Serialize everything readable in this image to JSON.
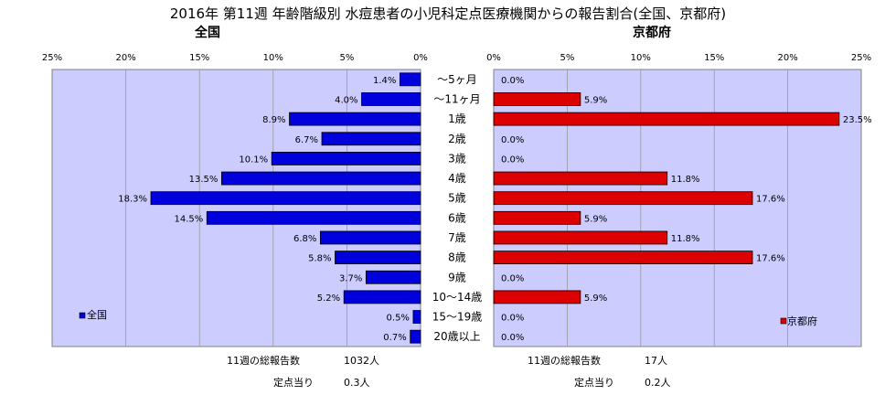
{
  "title": "2016年 第11週 年齢階級別 水痘患者の小児科定点医療機関からの報告割合(全国、京都府)",
  "colors": {
    "national": "#0000dd",
    "kyoto": "#dd0000",
    "plot_bg": "#ccccff"
  },
  "chart_data": [
    {
      "type": "bar",
      "orientation": "horizontal",
      "direction": "reversed",
      "title": "全国",
      "categories": [
        "〜5ヶ月",
        "〜11ヶ月",
        "1歳",
        "2歳",
        "3歳",
        "4歳",
        "5歳",
        "6歳",
        "7歳",
        "8歳",
        "9歳",
        "10〜14歳",
        "15〜19歳",
        "20歳以上"
      ],
      "series": [
        {
          "name": "全国",
          "values": [
            1.4,
            4.0,
            8.9,
            6.7,
            10.1,
            13.5,
            18.3,
            14.5,
            6.8,
            5.8,
            3.7,
            5.2,
            0.5,
            0.7
          ]
        }
      ],
      "data_labels": [
        "1.4%",
        "4.0%",
        "8.9%",
        "6.7%",
        "10.1%",
        "13.5%",
        "18.3%",
        "14.5%",
        "6.8%",
        "5.8%",
        "3.7%",
        "5.2%",
        "0.5%",
        "0.7%"
      ],
      "xlim": [
        0,
        25
      ],
      "x_ticks": [
        "25%",
        "20%",
        "15%",
        "10%",
        "5%",
        "0%"
      ],
      "grid": true,
      "legend": "bottom-left",
      "footer": [
        {
          "label": "11週の総報告数",
          "value": "1032人"
        },
        {
          "label": "定点当り",
          "value": "0.3人"
        }
      ]
    },
    {
      "type": "bar",
      "orientation": "horizontal",
      "title": "京都府",
      "categories": [
        "〜5ヶ月",
        "〜11ヶ月",
        "1歳",
        "2歳",
        "3歳",
        "4歳",
        "5歳",
        "6歳",
        "7歳",
        "8歳",
        "9歳",
        "10〜14歳",
        "15〜19歳",
        "20歳以上"
      ],
      "series": [
        {
          "name": "京都府",
          "values": [
            0.0,
            5.9,
            23.5,
            0.0,
            0.0,
            11.8,
            17.6,
            5.9,
            11.8,
            17.6,
            0.0,
            5.9,
            0.0,
            0.0
          ]
        }
      ],
      "data_labels": [
        "0.0%",
        "5.9%",
        "23.5%",
        "0.0%",
        "0.0%",
        "11.8%",
        "17.6%",
        "5.9%",
        "11.8%",
        "17.6%",
        "0.0%",
        "5.9%",
        "0.0%",
        "0.0%"
      ],
      "xlim": [
        0,
        25
      ],
      "x_ticks": [
        "0%",
        "5%",
        "10%",
        "15%",
        "20%",
        "25%"
      ],
      "grid": true,
      "legend": "bottom-right",
      "footer": [
        {
          "label": "11週の総報告数",
          "value": "17人"
        },
        {
          "label": "定点当り",
          "value": "0.2人"
        }
      ]
    }
  ]
}
